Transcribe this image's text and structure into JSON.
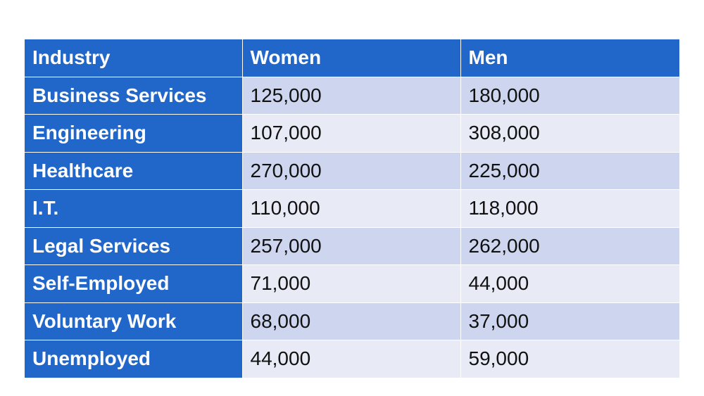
{
  "chart_data": {
    "type": "table",
    "columns": [
      "Industry",
      "Women",
      "Men"
    ],
    "rows": [
      [
        "Business Services",
        "125,000",
        "180,000"
      ],
      [
        "Engineering",
        "107,000",
        "308,000"
      ],
      [
        "Healthcare",
        "270,000",
        "225,000"
      ],
      [
        "I.T.",
        "110,000",
        "118,000"
      ],
      [
        "Legal Services",
        "257,000",
        "262,000"
      ],
      [
        "Self-Employed",
        "71,000",
        "44,000"
      ],
      [
        "Voluntary Work",
        "68,000",
        "37,000"
      ],
      [
        "Unemployed",
        "44,000",
        "59,000"
      ]
    ],
    "colors": {
      "header_bg": "#2166c9",
      "row_odd_bg": "#cdd6ee",
      "row_even_bg": "#e8ebf6"
    }
  }
}
